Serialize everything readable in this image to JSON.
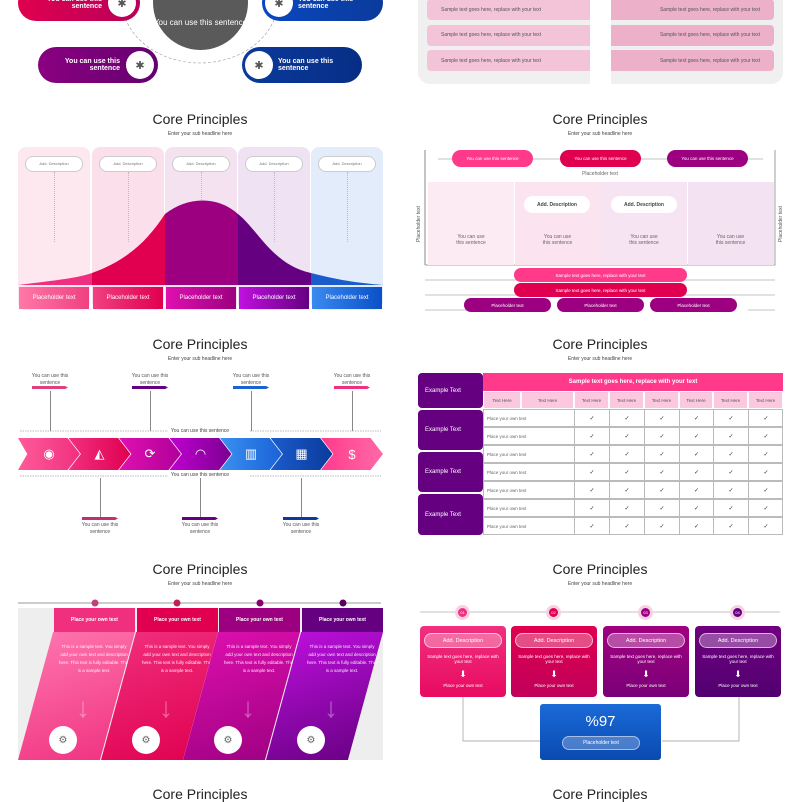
{
  "colors": {
    "pink": "#f0307f",
    "rose": "#e0004f",
    "magenta": "#9c0080",
    "purple": "#650080",
    "blue": "#1a62d6",
    "navy": "#0b3a9c",
    "gray": "#5a5a5a"
  },
  "common": {
    "title": "Core Principles",
    "subtitle": "Enter your sub headline here"
  },
  "hub": {
    "center": "You can use this sentence",
    "items": [
      "You can use this sentence",
      "You can use this sentence",
      "You can use this sentence",
      "You can use this sentence"
    ]
  },
  "list_panel": {
    "left": [
      "Sample text goes here, replace with your text",
      "Sample text goes here, replace with your text",
      "Sample text goes here, replace with your text"
    ],
    "right": [
      "Sample text goes here, replace with your text",
      "Sample text goes here, replace with your text",
      "Sample text goes here, replace with your text"
    ]
  },
  "bell": {
    "descriptions": [
      "Add. Description",
      "Add. Description",
      "Add. Description",
      "Add. Description",
      "Add. Description"
    ],
    "footers": [
      "Placeholder text",
      "Placeholder text",
      "Placeholder text",
      "Placeholder text",
      "Placeholder text"
    ]
  },
  "matrix": {
    "top_pills": [
      "You can use this sentence",
      "You can use this sentence",
      "You can use this sentence"
    ],
    "top_label": "Placeholder text",
    "axis_label": "Placeholder text",
    "descriptions": [
      "Add. Description",
      "Add. Description"
    ],
    "cells": [
      "You can use this sentence",
      "You can use this sentence",
      "You can use this sentence",
      "You can use this sentence"
    ],
    "bars": [
      "Sample text goes here, replace with your text",
      "Sample text goes here, replace with your text"
    ],
    "bottom_pills": [
      "Placeholder text",
      "Placeholder text",
      "Placeholder text"
    ]
  },
  "chevrons": {
    "icons": [
      "eye-icon",
      "ruler-tools-icon",
      "cycle-icon",
      "gauge-icon",
      "growth-chart-icon",
      "analytics-icon",
      "money-icon"
    ],
    "top_labels": [
      "You can use this sentence",
      "You can use this sentence",
      "You can use this sentence",
      "You can use this sentence"
    ],
    "bottom_labels": [
      "You can use this sentence",
      "You can use this sentence",
      "You can use this sentence"
    ],
    "line_label": "You can use this sentence"
  },
  "table": {
    "header": "Sample text goes here, replace with your text",
    "groups": [
      "Example Text",
      "Example Text",
      "Example Text",
      "Example Text"
    ],
    "columns": [
      "Text Here",
      "Text Here",
      "Text Here",
      "Text Here",
      "Text Here",
      "Text Here",
      "Text Here",
      "Text Here"
    ],
    "rows": [
      "Place your own text",
      "Place your own text",
      "Place your own text",
      "Place your own text",
      "Place your own text",
      "Place your own text",
      "Place your own text"
    ],
    "check": "✓"
  },
  "steps": {
    "headers": [
      "Place your own text",
      "Place your own text",
      "Place your own text",
      "Place your own text"
    ],
    "body": "This is a sample text. You simply add your own text and description here. This text is fully editable. This is a sample text.",
    "icons": [
      "presentation-icon",
      "gears-cycle-icon",
      "briefcase-icon",
      "target-icon"
    ]
  },
  "process": {
    "numbers": [
      "01",
      "02",
      "03",
      "04"
    ],
    "descriptions": [
      "Add. Description",
      "Add. Description",
      "Add. Description",
      "Add. Description"
    ],
    "texts": [
      "Sample text goes here, replace with your text",
      "Sample text goes here, replace with your text",
      "Sample text goes here, replace with your text",
      "Sample text goes here, replace with your text"
    ],
    "footers": [
      "Place your own text",
      "Place your own text",
      "Place your own text",
      "Place your own text"
    ],
    "result_value": "%97",
    "result_label": "Placeholder text"
  }
}
